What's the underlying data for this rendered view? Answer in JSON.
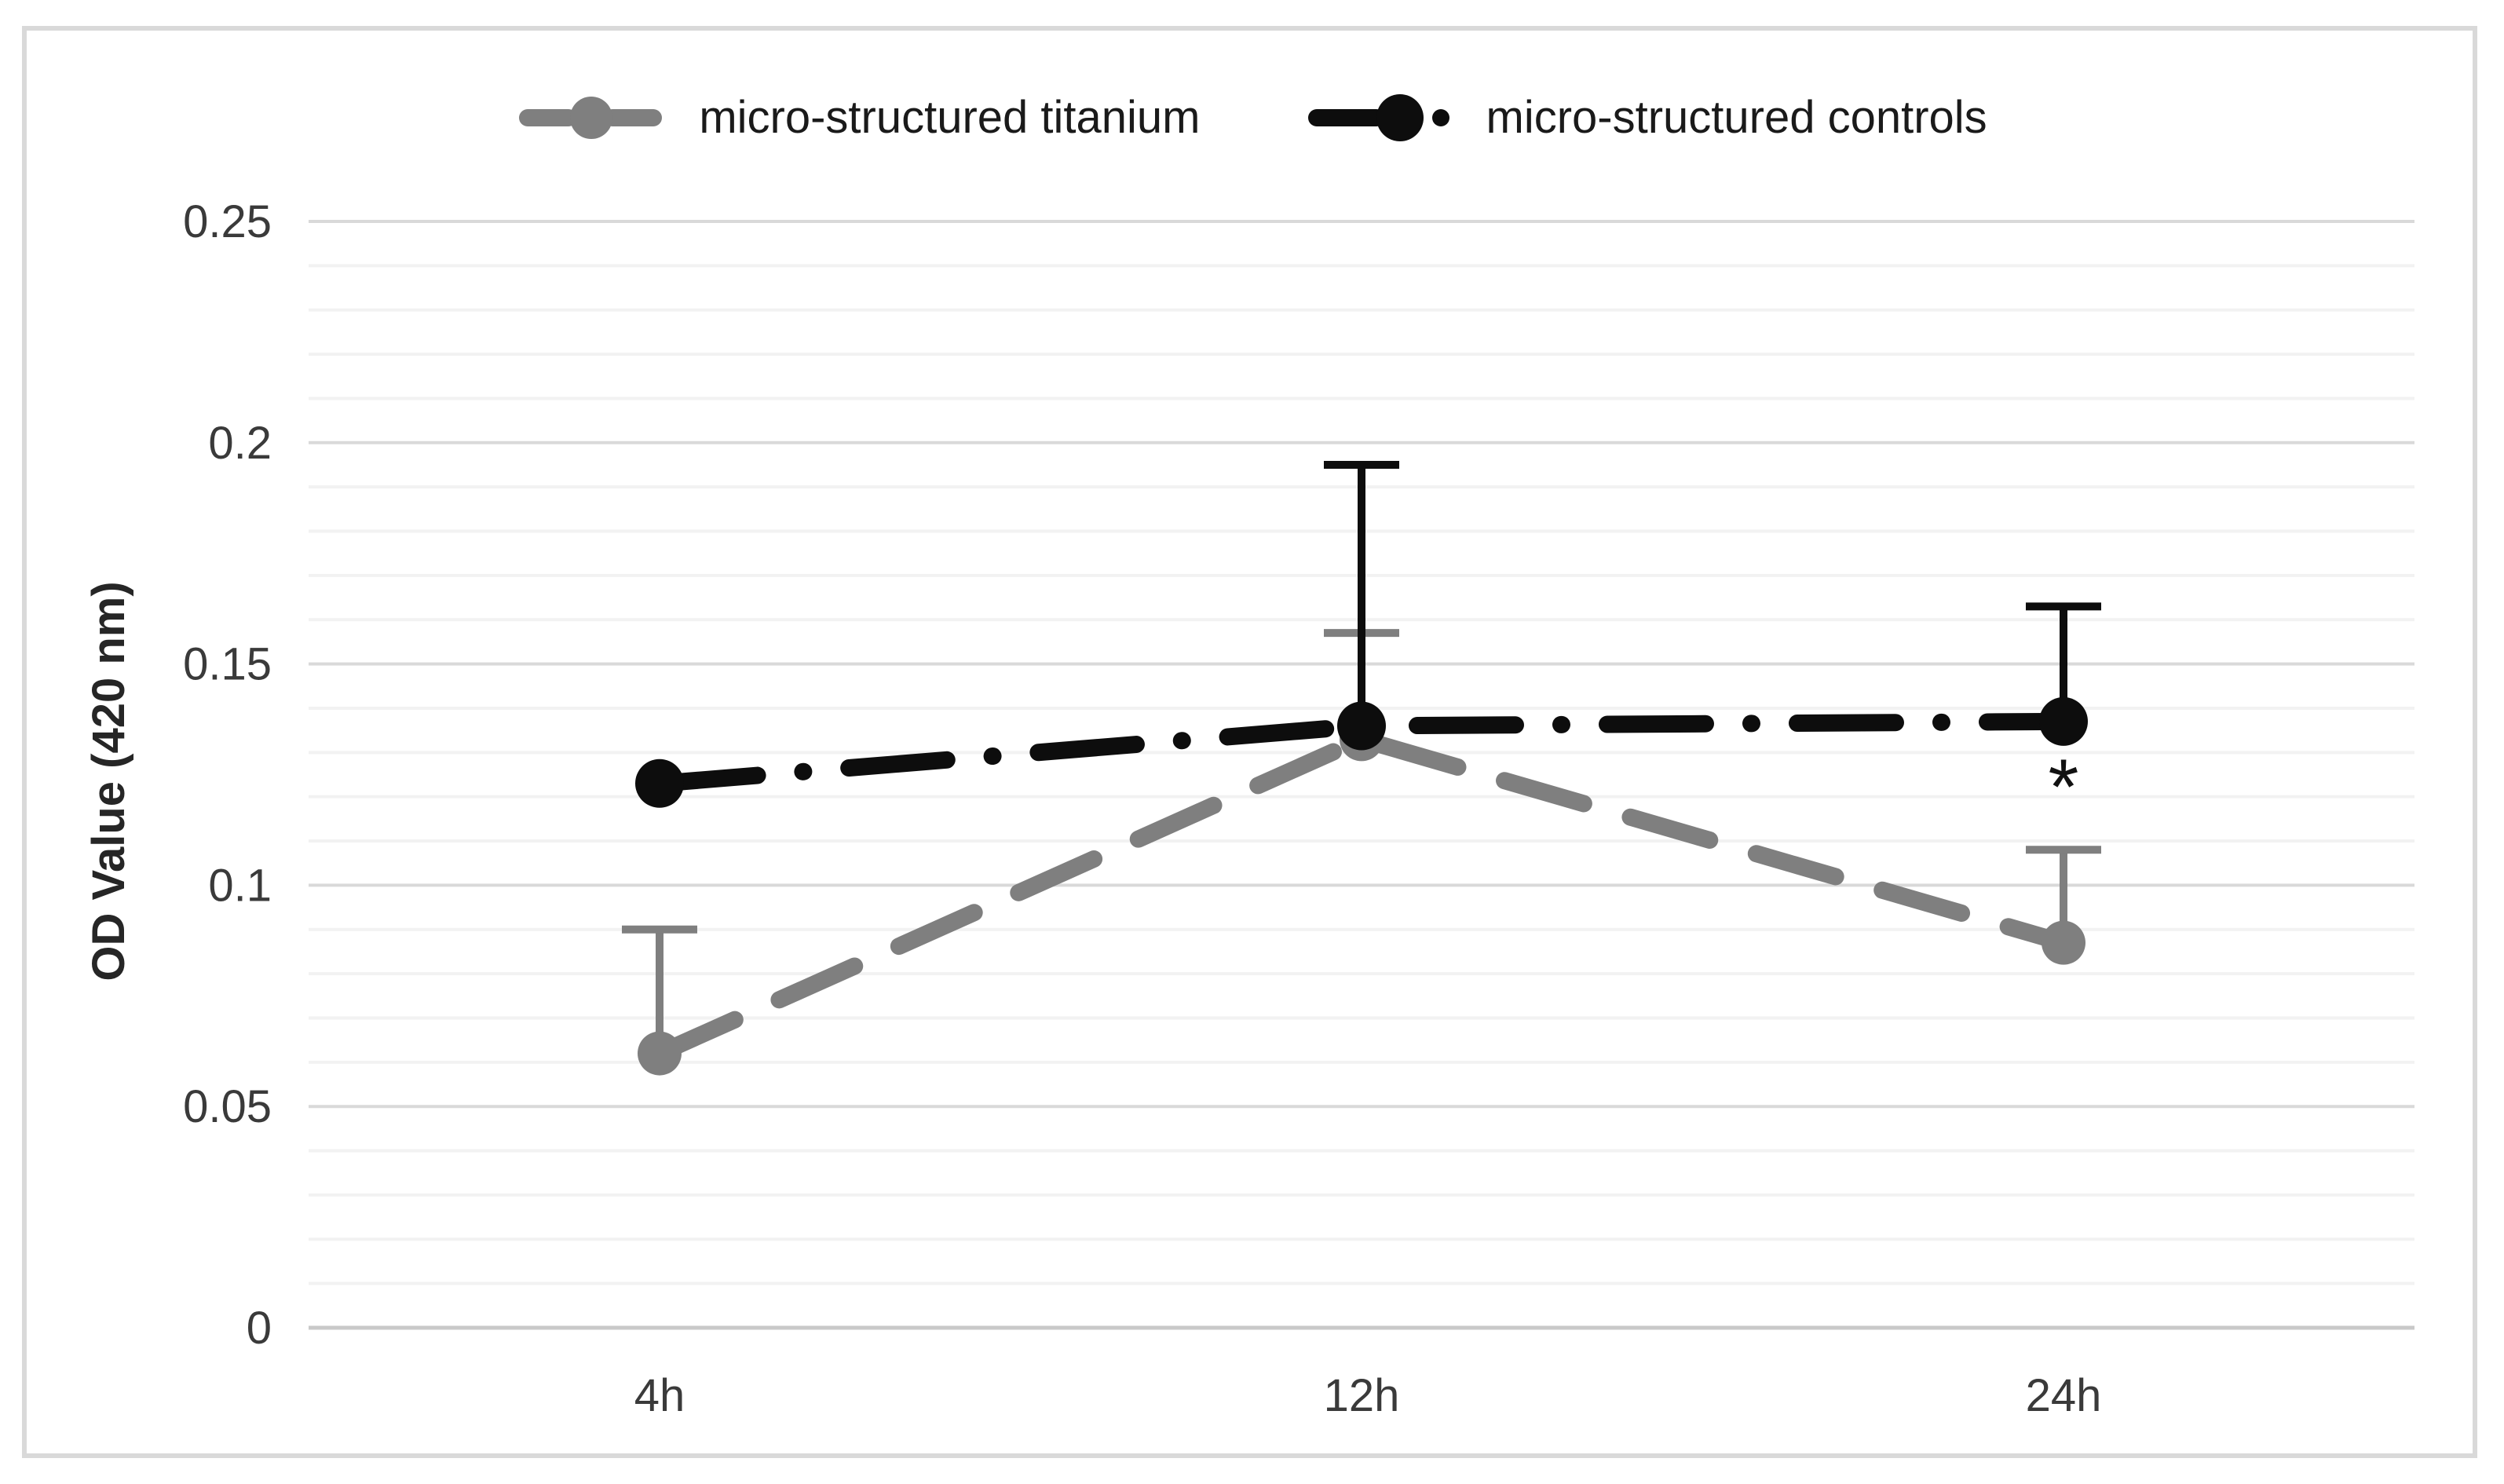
{
  "figure": {
    "background": "#ffffff",
    "border_color": "#d9d9d9"
  },
  "chart_data": {
    "type": "line",
    "title": "",
    "xlabel": "",
    "ylabel": "OD Value (420 nm)",
    "categories": [
      "4h",
      "12h",
      "24h"
    ],
    "series": [
      {
        "name": "micro-structured titanium",
        "color": "#7f7f7f",
        "line_style": "dashed",
        "marker": "circle",
        "values": [
          0.062,
          0.133,
          0.087
        ],
        "error_plus": [
          0.028,
          0.024,
          0.021
        ]
      },
      {
        "name": "micro-structured controls",
        "color": "#0d0d0d",
        "line_style": "dash-dot",
        "marker": "circle",
        "values": [
          0.123,
          0.136,
          0.137
        ],
        "error_plus": [
          0,
          0.059,
          0.026
        ]
      }
    ],
    "ylim": [
      0,
      0.25
    ],
    "yticks": [
      {
        "value": 0.25,
        "label": "0.25"
      },
      {
        "value": 0.2,
        "label": "0.2"
      },
      {
        "value": 0.15,
        "label": "0.15"
      },
      {
        "value": 0.1,
        "label": "0.1"
      },
      {
        "value": 0.05,
        "label": "0.05"
      },
      {
        "value": 0,
        "label": "0"
      }
    ],
    "minor_grid_step": 0.01,
    "grid": true,
    "legend_position": "top-center",
    "annotations": [
      {
        "text": "*",
        "category_index": 2,
        "y": 0.125
      }
    ],
    "colors": {
      "minor_gridline": "#f2f2f2",
      "major_gridline": "#d9d9d9",
      "zero_line": "#c9c9c9",
      "tick_text": "#3a3a3a",
      "axis_title_text": "#262626",
      "annotation_text": "#111111"
    }
  }
}
